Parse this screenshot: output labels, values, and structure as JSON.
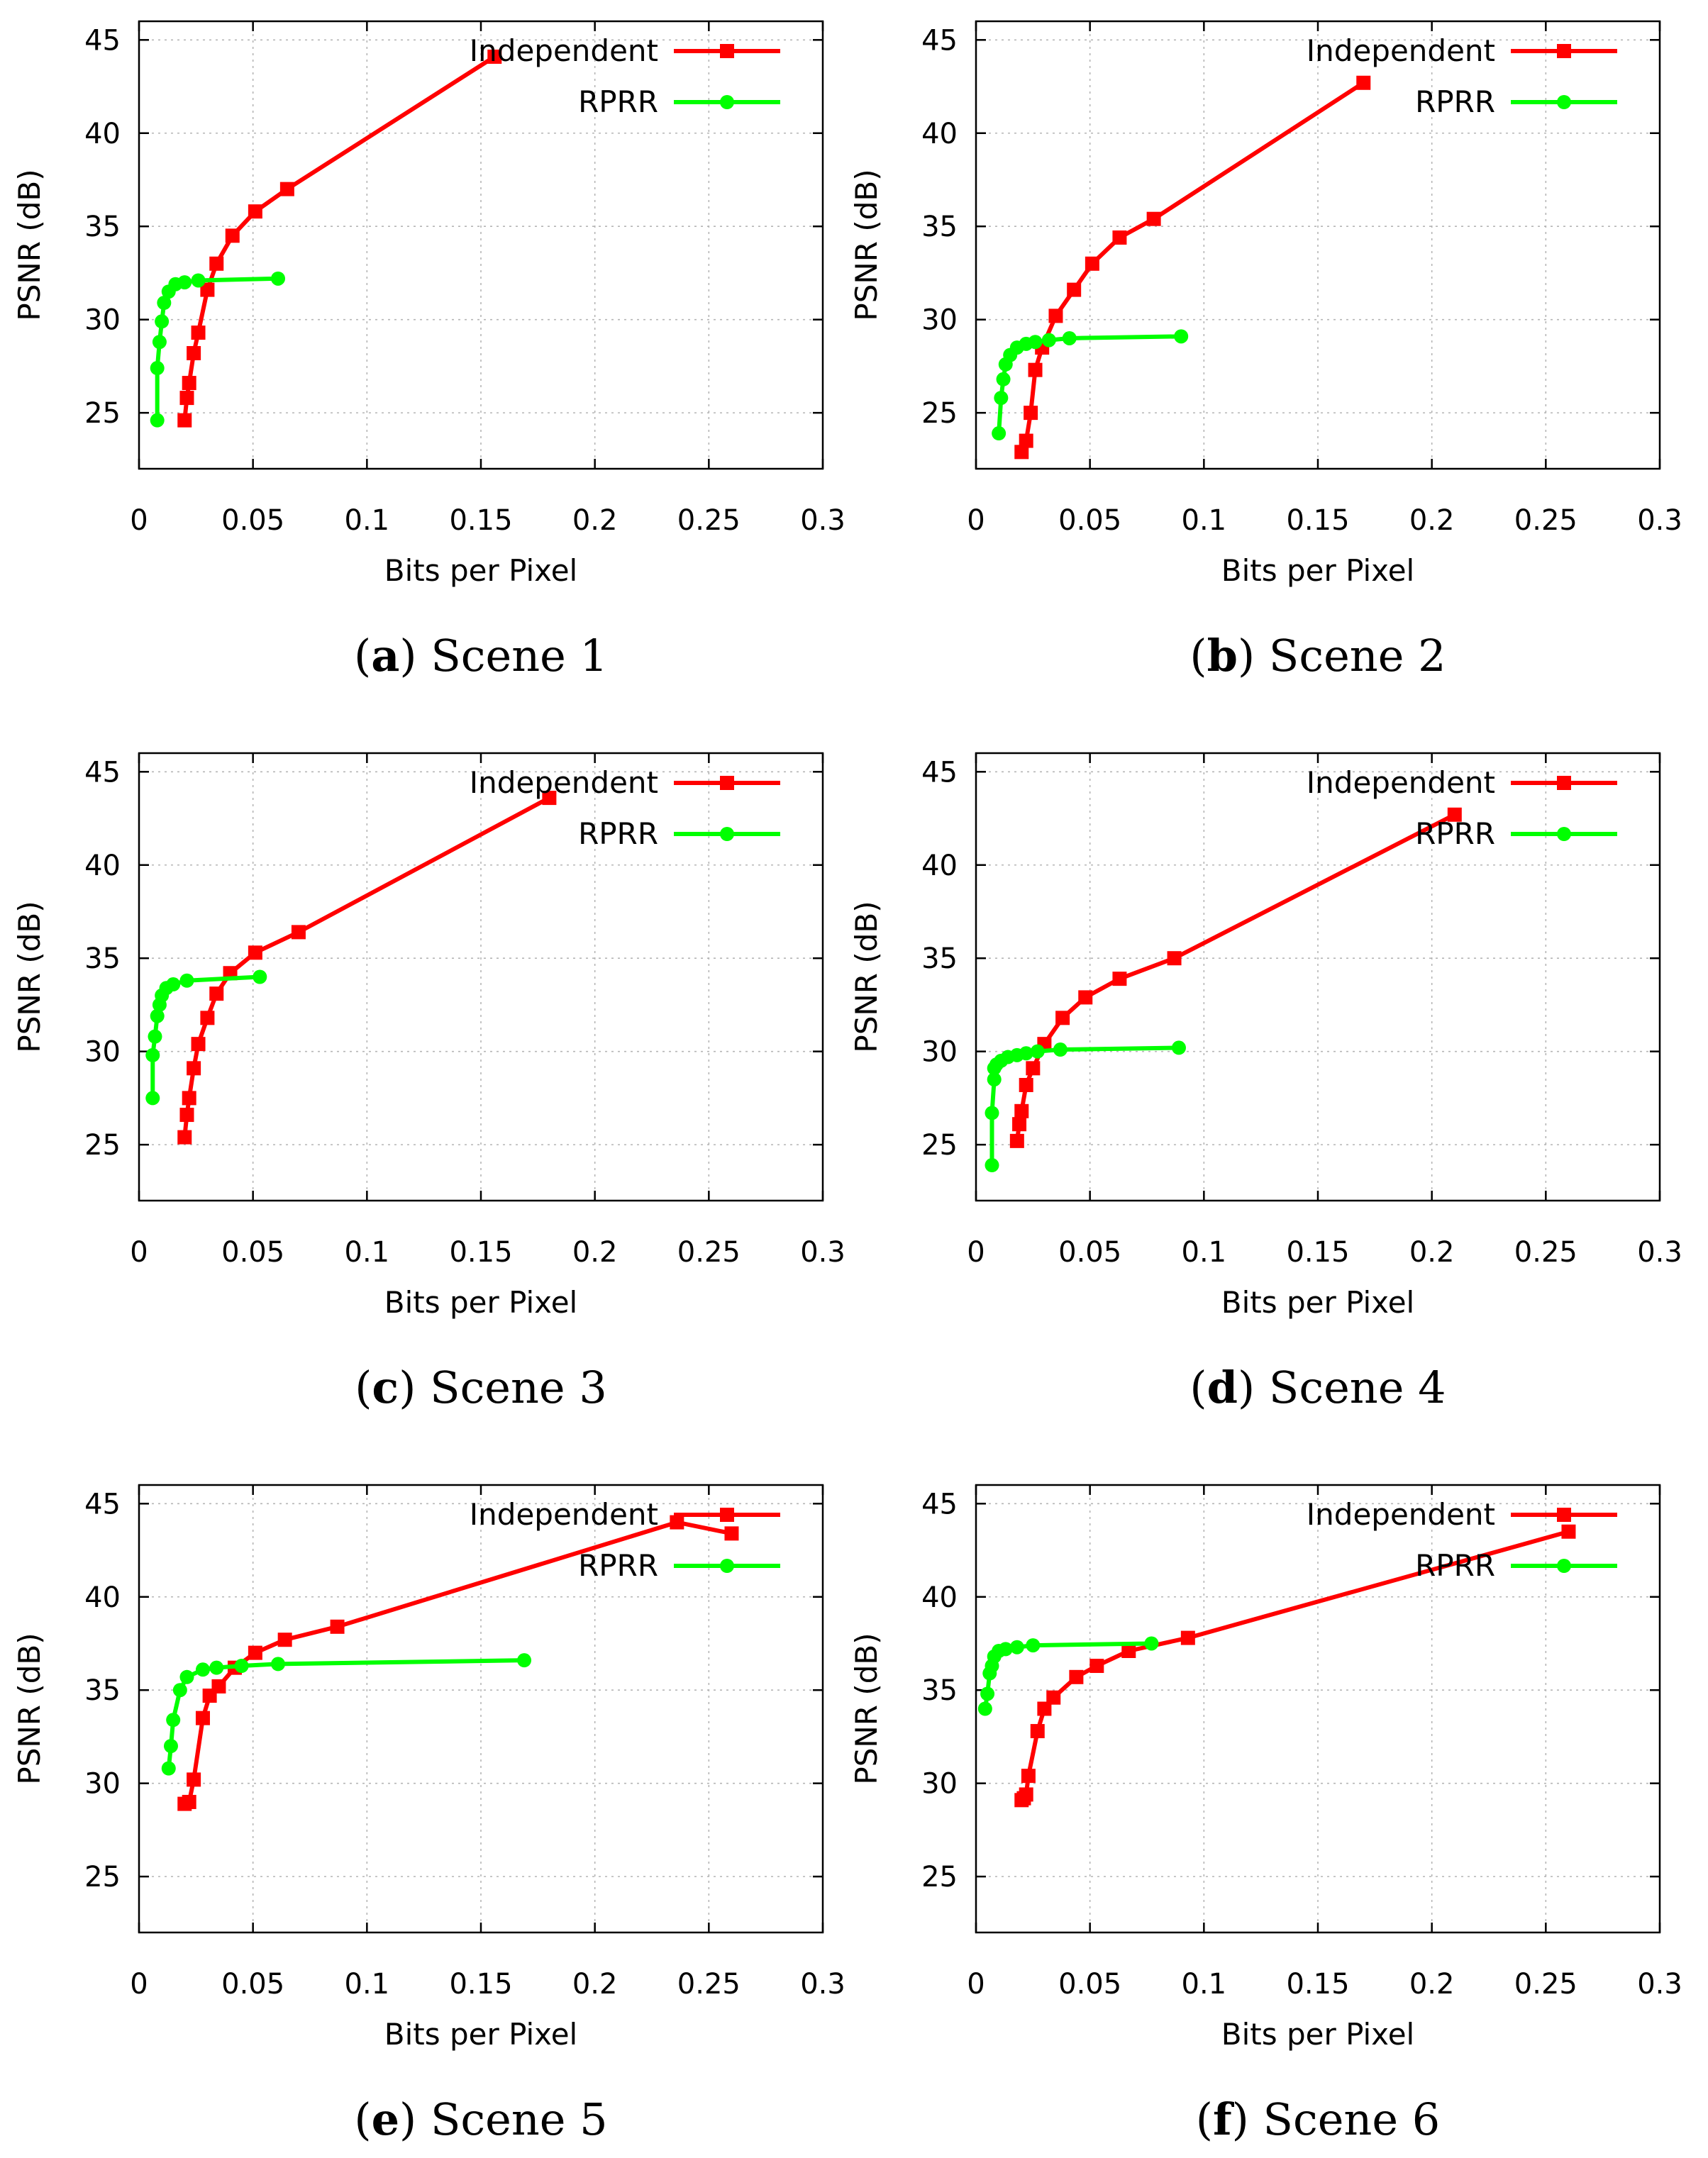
{
  "chart_data": [
    {
      "type": "line",
      "caption_letter": "a",
      "caption_text": "Scene 1",
      "xlabel": "Bits per Pixel",
      "ylabel": "PSNR (dB)",
      "xlim": [
        0,
        0.3
      ],
      "ylim": [
        22,
        46
      ],
      "x_ticks": [
        "0",
        "0.05",
        "0.1",
        "0.15",
        "0.2",
        "0.25",
        "0.3"
      ],
      "y_ticks": [
        "25",
        "30",
        "35",
        "40",
        "45"
      ],
      "grid": true,
      "legend_position": "top-right",
      "series": [
        {
          "name": "Independent",
          "color": "#ff0000",
          "marker": "square",
          "x": [
            0.02,
            0.021,
            0.022,
            0.024,
            0.026,
            0.03,
            0.034,
            0.041,
            0.051,
            0.065,
            0.156
          ],
          "y": [
            24.6,
            25.8,
            26.6,
            28.2,
            29.3,
            31.6,
            33.0,
            34.5,
            35.8,
            37.0,
            44.1
          ]
        },
        {
          "name": "RPRR",
          "color": "#00ff00",
          "marker": "circle",
          "x": [
            0.008,
            0.008,
            0.009,
            0.01,
            0.011,
            0.013,
            0.016,
            0.02,
            0.026,
            0.061
          ],
          "y": [
            24.6,
            27.4,
            28.8,
            29.9,
            30.9,
            31.5,
            31.9,
            32.0,
            32.1,
            32.2
          ]
        }
      ]
    },
    {
      "type": "line",
      "caption_letter": "b",
      "caption_text": "Scene 2",
      "xlabel": "Bits per Pixel",
      "ylabel": "PSNR (dB)",
      "xlim": [
        0,
        0.3
      ],
      "ylim": [
        22,
        46
      ],
      "x_ticks": [
        "0",
        "0.05",
        "0.1",
        "0.15",
        "0.2",
        "0.25",
        "0.3"
      ],
      "y_ticks": [
        "25",
        "30",
        "35",
        "40",
        "45"
      ],
      "grid": true,
      "legend_position": "top-right",
      "series": [
        {
          "name": "Independent",
          "color": "#ff0000",
          "marker": "square",
          "x": [
            0.02,
            0.022,
            0.024,
            0.026,
            0.029,
            0.035,
            0.043,
            0.051,
            0.063,
            0.078,
            0.17
          ],
          "y": [
            22.9,
            23.5,
            25.0,
            27.3,
            28.5,
            30.2,
            31.6,
            33.0,
            34.4,
            35.4,
            42.7
          ]
        },
        {
          "name": "RPRR",
          "color": "#00ff00",
          "marker": "circle",
          "x": [
            0.01,
            0.011,
            0.012,
            0.013,
            0.015,
            0.018,
            0.022,
            0.026,
            0.032,
            0.041,
            0.09
          ],
          "y": [
            23.9,
            25.8,
            26.8,
            27.6,
            28.1,
            28.5,
            28.7,
            28.8,
            28.9,
            29.0,
            29.1
          ]
        }
      ]
    },
    {
      "type": "line",
      "caption_letter": "c",
      "caption_text": "Scene 3",
      "xlabel": "Bits per Pixel",
      "ylabel": "PSNR (dB)",
      "xlim": [
        0,
        0.3
      ],
      "ylim": [
        22,
        46
      ],
      "x_ticks": [
        "0",
        "0.05",
        "0.1",
        "0.15",
        "0.2",
        "0.25",
        "0.3"
      ],
      "y_ticks": [
        "25",
        "30",
        "35",
        "40",
        "45"
      ],
      "grid": true,
      "legend_position": "top-right",
      "series": [
        {
          "name": "Independent",
          "color": "#ff0000",
          "marker": "square",
          "x": [
            0.02,
            0.021,
            0.022,
            0.024,
            0.026,
            0.03,
            0.034,
            0.04,
            0.051,
            0.07,
            0.18
          ],
          "y": [
            25.4,
            26.6,
            27.5,
            29.1,
            30.4,
            31.8,
            33.1,
            34.2,
            35.3,
            36.4,
            43.6
          ]
        },
        {
          "name": "RPRR",
          "color": "#00ff00",
          "marker": "circle",
          "x": [
            0.006,
            0.006,
            0.007,
            0.008,
            0.009,
            0.01,
            0.012,
            0.015,
            0.021,
            0.053
          ],
          "y": [
            27.5,
            29.8,
            30.8,
            31.9,
            32.5,
            33.0,
            33.4,
            33.6,
            33.8,
            34.0
          ]
        }
      ]
    },
    {
      "type": "line",
      "caption_letter": "d",
      "caption_text": "Scene 4",
      "xlabel": "Bits per Pixel",
      "ylabel": "PSNR (dB)",
      "xlim": [
        0,
        0.3
      ],
      "ylim": [
        22,
        46
      ],
      "x_ticks": [
        "0",
        "0.05",
        "0.1",
        "0.15",
        "0.2",
        "0.25",
        "0.3"
      ],
      "y_ticks": [
        "25",
        "30",
        "35",
        "40",
        "45"
      ],
      "grid": true,
      "legend_position": "top-right",
      "series": [
        {
          "name": "Independent",
          "color": "#ff0000",
          "marker": "square",
          "x": [
            0.018,
            0.019,
            0.02,
            0.022,
            0.025,
            0.03,
            0.038,
            0.048,
            0.063,
            0.087,
            0.21
          ],
          "y": [
            25.2,
            26.1,
            26.8,
            28.2,
            29.1,
            30.4,
            31.8,
            32.9,
            33.9,
            35.0,
            42.7
          ]
        },
        {
          "name": "RPRR",
          "color": "#00ff00",
          "marker": "circle",
          "x": [
            0.007,
            0.007,
            0.008,
            0.008,
            0.009,
            0.011,
            0.014,
            0.018,
            0.022,
            0.027,
            0.037,
            0.089
          ],
          "y": [
            23.9,
            26.7,
            28.5,
            29.1,
            29.3,
            29.5,
            29.7,
            29.8,
            29.9,
            30.0,
            30.1,
            30.2
          ]
        }
      ]
    },
    {
      "type": "line",
      "caption_letter": "e",
      "caption_text": "Scene 5",
      "xlabel": "Bits per Pixel",
      "ylabel": "PSNR (dB)",
      "xlim": [
        0,
        0.3
      ],
      "ylim": [
        22,
        46
      ],
      "x_ticks": [
        "0",
        "0.05",
        "0.1",
        "0.15",
        "0.2",
        "0.25",
        "0.3"
      ],
      "y_ticks": [
        "25",
        "30",
        "35",
        "40",
        "45"
      ],
      "grid": true,
      "legend_position": "top-right",
      "series": [
        {
          "name": "Independent",
          "color": "#ff0000",
          "marker": "square",
          "x": [
            0.02,
            0.022,
            0.024,
            0.028,
            0.031,
            0.035,
            0.042,
            0.051,
            0.064,
            0.087,
            0.236,
            0.26
          ],
          "y": [
            28.9,
            29.0,
            30.2,
            33.5,
            34.7,
            35.2,
            36.2,
            37.0,
            37.7,
            38.4,
            44.0,
            43.4
          ]
        },
        {
          "name": "RPRR",
          "color": "#00ff00",
          "marker": "circle",
          "x": [
            0.013,
            0.014,
            0.015,
            0.018,
            0.021,
            0.028,
            0.034,
            0.045,
            0.061,
            0.169
          ],
          "y": [
            30.8,
            32.0,
            33.4,
            35.0,
            35.7,
            36.1,
            36.2,
            36.3,
            36.4,
            36.6
          ]
        }
      ]
    },
    {
      "type": "line",
      "caption_letter": "f",
      "caption_text": "Scene 6",
      "xlabel": "Bits per Pixel",
      "ylabel": "PSNR (dB)",
      "xlim": [
        0,
        0.3
      ],
      "ylim": [
        22,
        46
      ],
      "x_ticks": [
        "0",
        "0.05",
        "0.1",
        "0.15",
        "0.2",
        "0.25",
        "0.3"
      ],
      "y_ticks": [
        "25",
        "30",
        "35",
        "40",
        "45"
      ],
      "grid": true,
      "legend_position": "top-right",
      "series": [
        {
          "name": "Independent",
          "color": "#ff0000",
          "marker": "square",
          "x": [
            0.02,
            0.021,
            0.022,
            0.023,
            0.027,
            0.03,
            0.034,
            0.044,
            0.053,
            0.067,
            0.093,
            0.26
          ],
          "y": [
            29.1,
            29.2,
            29.4,
            30.4,
            32.8,
            34.0,
            34.6,
            35.7,
            36.3,
            37.1,
            37.8,
            43.5
          ]
        },
        {
          "name": "RPRR",
          "color": "#00ff00",
          "marker": "circle",
          "x": [
            0.004,
            0.005,
            0.006,
            0.007,
            0.008,
            0.01,
            0.013,
            0.018,
            0.025,
            0.077
          ],
          "y": [
            34.0,
            34.8,
            35.9,
            36.3,
            36.8,
            37.1,
            37.2,
            37.3,
            37.4,
            37.5
          ]
        }
      ]
    }
  ]
}
